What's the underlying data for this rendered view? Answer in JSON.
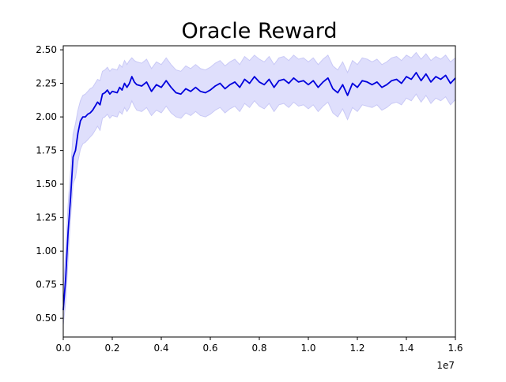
{
  "chart_data": {
    "type": "line",
    "title": "Oracle Reward",
    "xlabel": "",
    "ylabel": "",
    "x_offset_label": "1e7",
    "xlim": [
      0,
      1.6
    ],
    "ylim": [
      0.36,
      2.53
    ],
    "x_ticks": [
      0.0,
      0.2,
      0.4,
      0.6,
      0.8,
      1.0,
      1.2,
      1.4,
      1.6
    ],
    "x_tick_labels": [
      "0.0",
      "0.2",
      "0.4",
      "0.6",
      "0.8",
      "1.0",
      "1.2",
      "1.4",
      "1.6"
    ],
    "y_ticks": [
      0.5,
      0.75,
      1.0,
      1.25,
      1.5,
      1.75,
      2.0,
      2.25,
      2.5
    ],
    "y_tick_labels": [
      "0.50",
      "0.75",
      "1.00",
      "1.25",
      "1.50",
      "1.75",
      "2.00",
      "2.25",
      "2.50"
    ],
    "grid": false,
    "legend": "none",
    "colors": {
      "line": "#0000dd",
      "band": "#d9d9fb",
      "band_edge": "#c9c9f6"
    },
    "series": [
      {
        "x": [
          0.0,
          0.01,
          0.02,
          0.03,
          0.04,
          0.05,
          0.06,
          0.07,
          0.08,
          0.09,
          0.1,
          0.11,
          0.12,
          0.14,
          0.15,
          0.16,
          0.17,
          0.18,
          0.19,
          0.2,
          0.22,
          0.23,
          0.24,
          0.25,
          0.26,
          0.27,
          0.28,
          0.29,
          0.3,
          0.32,
          0.34,
          0.36,
          0.38,
          0.4,
          0.42,
          0.44,
          0.46,
          0.48,
          0.5,
          0.52,
          0.54,
          0.56,
          0.58,
          0.6,
          0.62,
          0.64,
          0.66,
          0.68,
          0.7,
          0.72,
          0.74,
          0.76,
          0.78,
          0.8,
          0.82,
          0.84,
          0.86,
          0.88,
          0.9,
          0.92,
          0.94,
          0.96,
          0.98,
          1.0,
          1.02,
          1.04,
          1.06,
          1.08,
          1.1,
          1.12,
          1.14,
          1.16,
          1.18,
          1.2,
          1.22,
          1.24,
          1.26,
          1.28,
          1.3,
          1.32,
          1.34,
          1.36,
          1.38,
          1.4,
          1.42,
          1.44,
          1.46,
          1.48,
          1.5,
          1.52,
          1.54,
          1.56,
          1.58,
          1.6
        ],
        "y": [
          0.56,
          0.8,
          1.15,
          1.4,
          1.7,
          1.75,
          1.88,
          1.97,
          2.0,
          2.0,
          2.02,
          2.03,
          2.05,
          2.11,
          2.09,
          2.17,
          2.18,
          2.2,
          2.17,
          2.19,
          2.18,
          2.22,
          2.2,
          2.25,
          2.22,
          2.25,
          2.3,
          2.26,
          2.24,
          2.23,
          2.26,
          2.19,
          2.24,
          2.22,
          2.27,
          2.22,
          2.18,
          2.17,
          2.21,
          2.19,
          2.22,
          2.19,
          2.18,
          2.2,
          2.23,
          2.25,
          2.21,
          2.24,
          2.26,
          2.22,
          2.28,
          2.25,
          2.3,
          2.26,
          2.24,
          2.28,
          2.22,
          2.27,
          2.28,
          2.25,
          2.29,
          2.26,
          2.27,
          2.24,
          2.27,
          2.22,
          2.26,
          2.29,
          2.21,
          2.18,
          2.24,
          2.16,
          2.25,
          2.22,
          2.27,
          2.26,
          2.24,
          2.26,
          2.22,
          2.24,
          2.27,
          2.28,
          2.25,
          2.3,
          2.28,
          2.33,
          2.27,
          2.32,
          2.26,
          2.3,
          2.28,
          2.31,
          2.25,
          2.29
        ],
        "lower": [
          0.45,
          0.62,
          0.95,
          1.25,
          1.5,
          1.55,
          1.67,
          1.76,
          1.8,
          1.81,
          1.83,
          1.85,
          1.87,
          1.93,
          1.9,
          1.99,
          2.0,
          2.02,
          1.99,
          2.01,
          2.0,
          2.04,
          2.02,
          2.07,
          2.04,
          2.07,
          2.12,
          2.08,
          2.05,
          2.04,
          2.07,
          2.01,
          2.05,
          2.03,
          2.08,
          2.03,
          2.0,
          1.99,
          2.03,
          2.01,
          2.04,
          2.01,
          2.0,
          2.02,
          2.05,
          2.07,
          2.03,
          2.06,
          2.08,
          2.04,
          2.1,
          2.07,
          2.12,
          2.08,
          2.06,
          2.1,
          2.04,
          2.09,
          2.1,
          2.07,
          2.11,
          2.08,
          2.09,
          2.06,
          2.09,
          2.04,
          2.08,
          2.11,
          2.03,
          2.0,
          2.06,
          1.98,
          2.07,
          2.04,
          2.09,
          2.08,
          2.07,
          2.09,
          2.05,
          2.07,
          2.1,
          2.11,
          2.09,
          2.14,
          2.12,
          2.17,
          2.11,
          2.16,
          2.1,
          2.14,
          2.12,
          2.15,
          2.09,
          2.13
        ],
        "upper": [
          0.7,
          1.0,
          1.35,
          1.6,
          1.87,
          1.95,
          2.05,
          2.12,
          2.16,
          2.17,
          2.19,
          2.21,
          2.22,
          2.28,
          2.27,
          2.34,
          2.35,
          2.37,
          2.34,
          2.36,
          2.35,
          2.39,
          2.37,
          2.42,
          2.39,
          2.42,
          2.44,
          2.42,
          2.41,
          2.4,
          2.43,
          2.36,
          2.41,
          2.39,
          2.44,
          2.39,
          2.35,
          2.34,
          2.38,
          2.36,
          2.39,
          2.36,
          2.35,
          2.37,
          2.4,
          2.42,
          2.38,
          2.41,
          2.43,
          2.39,
          2.45,
          2.42,
          2.46,
          2.43,
          2.41,
          2.45,
          2.39,
          2.44,
          2.45,
          2.42,
          2.46,
          2.43,
          2.44,
          2.41,
          2.44,
          2.39,
          2.43,
          2.46,
          2.38,
          2.35,
          2.41,
          2.33,
          2.42,
          2.39,
          2.44,
          2.43,
          2.41,
          2.43,
          2.39,
          2.41,
          2.44,
          2.45,
          2.42,
          2.46,
          2.44,
          2.48,
          2.43,
          2.47,
          2.42,
          2.45,
          2.43,
          2.46,
          2.41,
          2.44
        ]
      }
    ]
  }
}
